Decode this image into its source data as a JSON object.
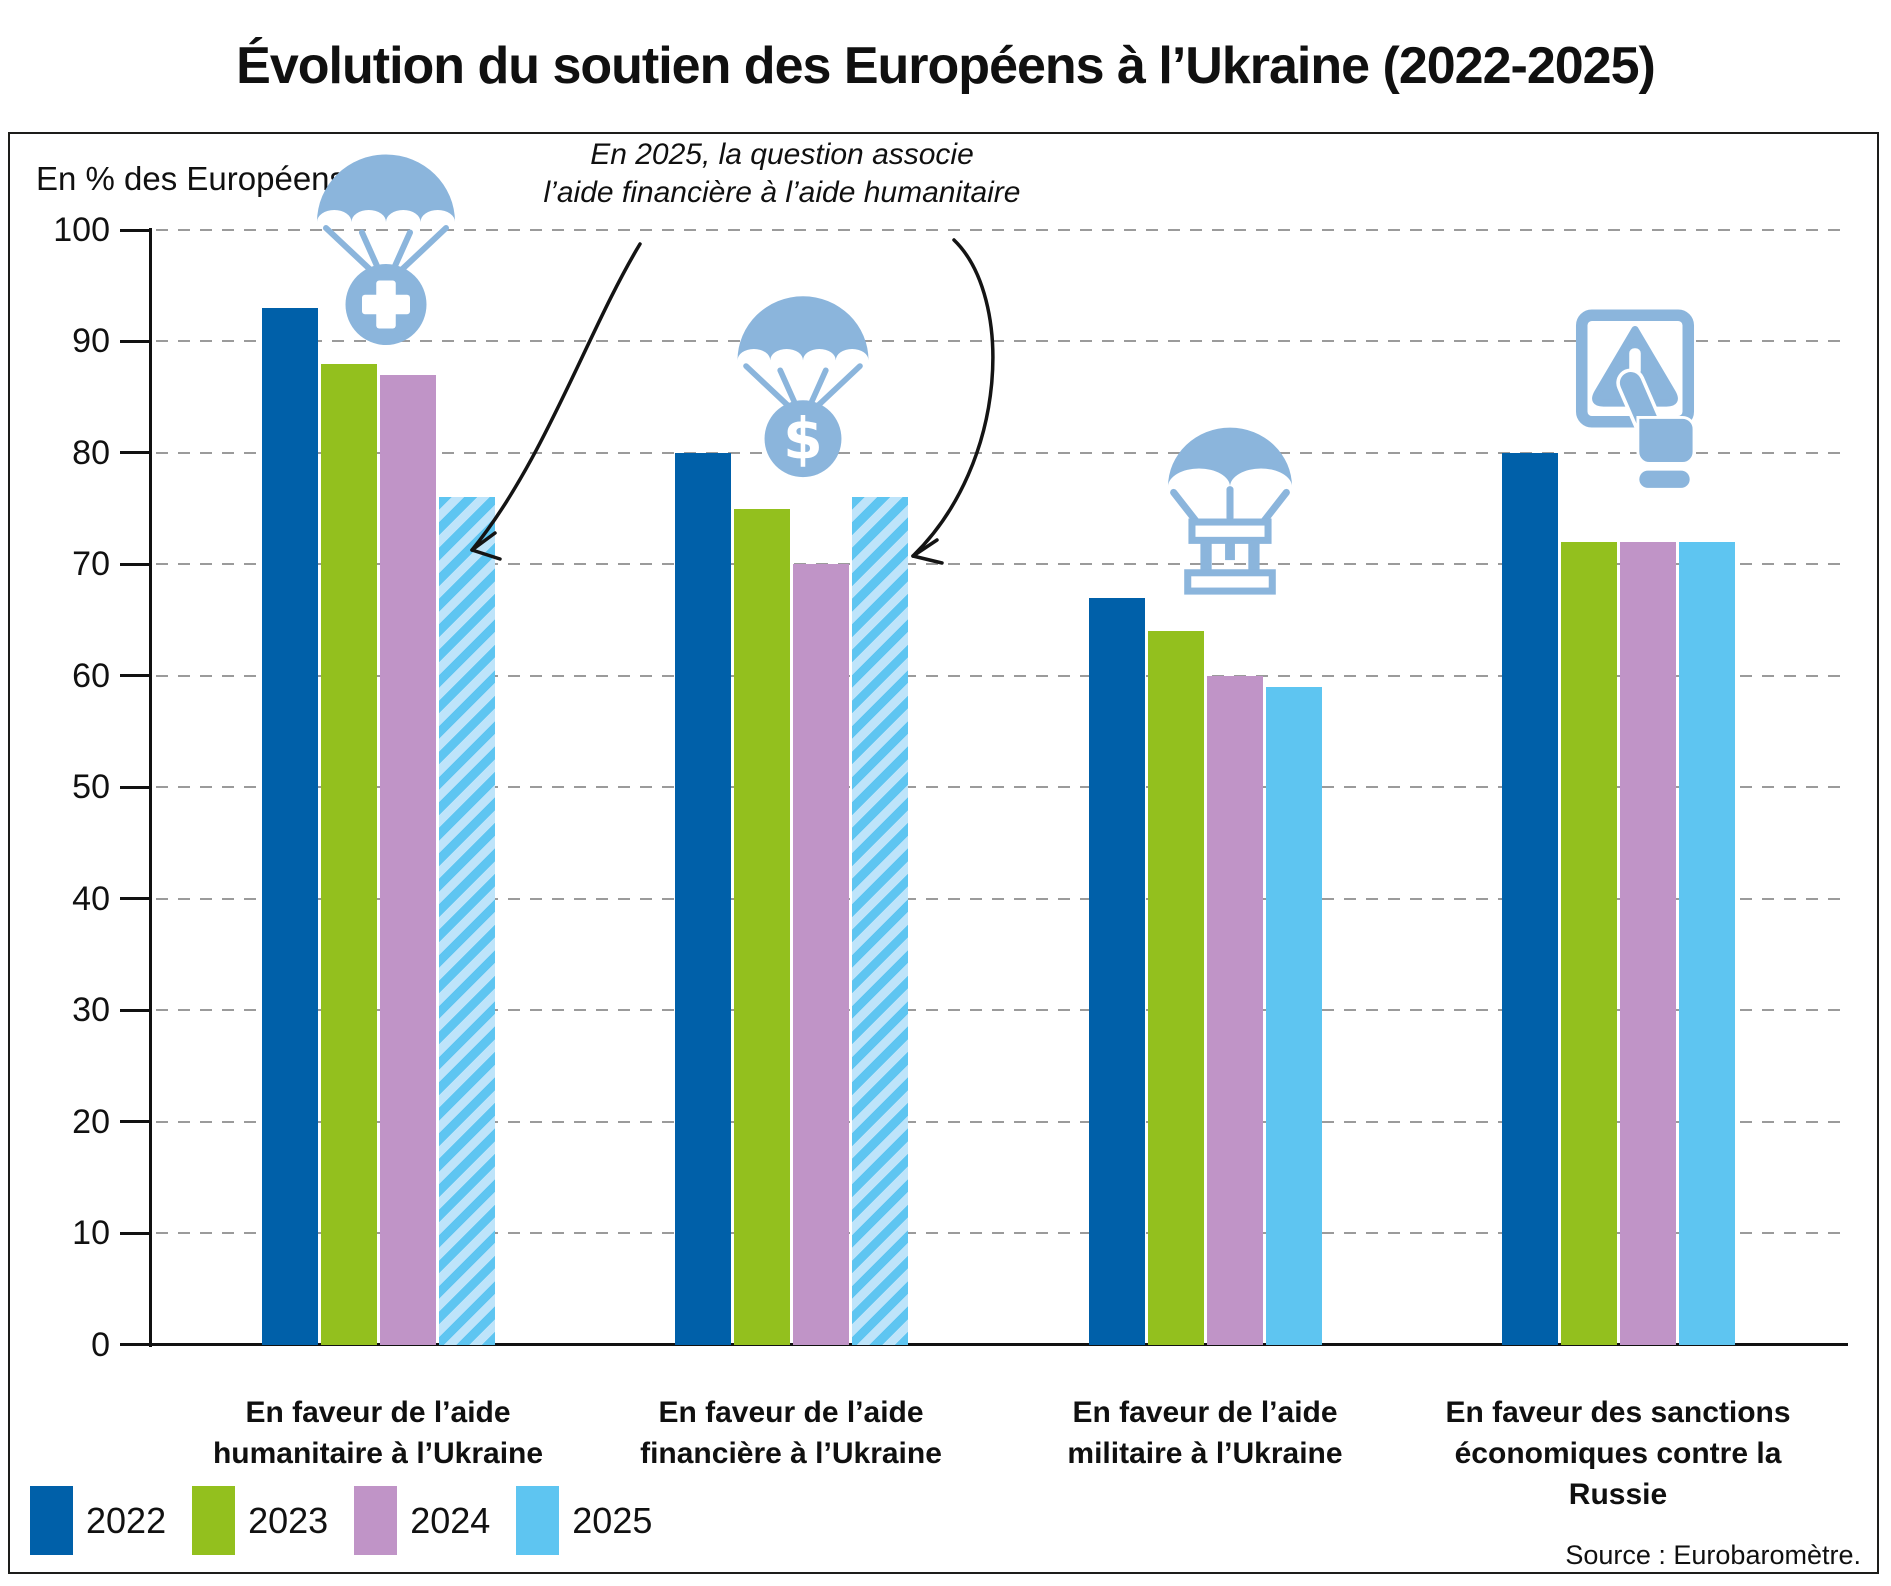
{
  "title": "Évolution du soutien des Européens à l’Ukraine (2022-2025)",
  "axis_label": "En % des Européens (UE)",
  "source": "Source : Eurobaromètre.",
  "annotation": {
    "line1": "En 2025, la question associe",
    "line2": "l’aide financière à l’aide humanitaire"
  },
  "legend": [
    {
      "label": "2022",
      "color": "#0060A9"
    },
    {
      "label": "2023",
      "color": "#93C01E"
    },
    {
      "label": "2024",
      "color": "#C094C7"
    },
    {
      "label": "2025",
      "color": "#5EC5F1"
    }
  ],
  "chart_data": {
    "type": "bar",
    "title": "Évolution du soutien des Européens à l’Ukraine (2022-2025)",
    "ylabel": "En % des Européens (UE)",
    "ylim": [
      0,
      100
    ],
    "ytick_step": 10,
    "grid": "horizontal-dashed",
    "legend_position": "bottom-left",
    "series_years": [
      "2022",
      "2023",
      "2024",
      "2025"
    ],
    "colors": {
      "2022": "#0060A9",
      "2023": "#93C01E",
      "2024": "#C094C7",
      "2025": "#5EC5F1",
      "hatch_light": "#BEE4FA",
      "icon_blue": "#8BB5DC",
      "grid": "#9B9B9B"
    },
    "groups": [
      {
        "category": "En faveur de l’aide humanitaire à l’Ukraine",
        "label_lines": [
          "En faveur de l’aide",
          "humanitaire à l’Ukraine"
        ],
        "icon": "parachute-medical",
        "values": {
          "2022": 93,
          "2023": 88,
          "2024": 87,
          "2025": 76
        },
        "hatched_2025": true
      },
      {
        "category": "En faveur de l’aide financière à l’Ukraine",
        "label_lines": [
          "En faveur de l’aide",
          "financière à l’Ukraine"
        ],
        "icon": "parachute-dollar",
        "values": {
          "2022": 80,
          "2023": 75,
          "2024": 70,
          "2025": 76
        },
        "hatched_2025": true
      },
      {
        "category": "En faveur de l’aide militaire à l’Ukraine",
        "label_lines": [
          "En faveur de l’aide",
          "militaire à l’Ukraine"
        ],
        "icon": "parachute-crate",
        "values": {
          "2022": 67,
          "2023": 64,
          "2024": 60,
          "2025": 59
        },
        "hatched_2025": false
      },
      {
        "category": "En faveur des sanctions économiques contre la Russie",
        "label_lines": [
          "En faveur des sanctions",
          "économiques contre la Russie"
        ],
        "icon": "warning-hand",
        "values": {
          "2022": 80,
          "2023": 72,
          "2024": 72,
          "2025": 72
        },
        "hatched_2025": false
      }
    ]
  }
}
